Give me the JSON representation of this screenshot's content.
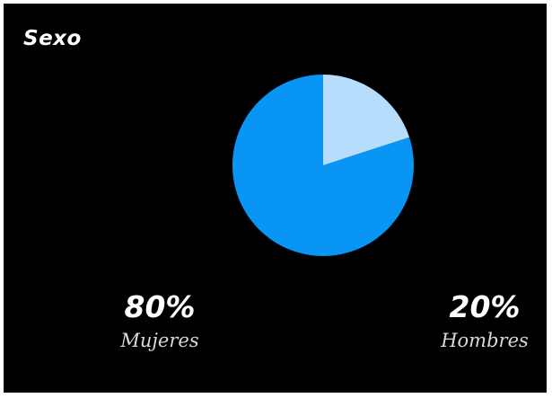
{
  "chart_data": {
    "type": "pie",
    "title": "Sexo",
    "slices": [
      {
        "label": "Mujeres",
        "value": 80,
        "display": "80%",
        "color": "#0895f3"
      },
      {
        "label": "Hombres",
        "value": 20,
        "display": "20%",
        "color": "#b6ddfc"
      }
    ],
    "start_angle_deg": 0,
    "direction": "counterclockwise",
    "legend": "none"
  }
}
